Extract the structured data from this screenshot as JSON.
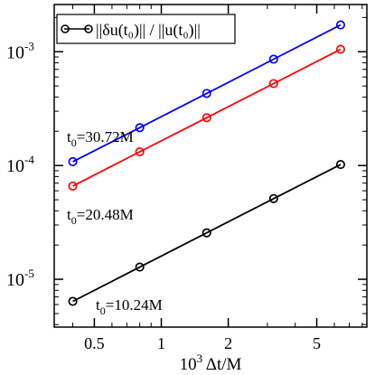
{
  "chart_data": {
    "type": "line",
    "xscale": "log",
    "yscale": "log",
    "xlim": [
      0.33,
      8.4
    ],
    "ylim": [
      3.8e-06,
      0.0026
    ],
    "xlabel": {
      "prefix": "10",
      "sup": "3",
      "rest": " Δt/M"
    },
    "xticks": [
      {
        "value": 0.5,
        "label": "0.5"
      },
      {
        "value": 1,
        "label": "1"
      },
      {
        "value": 2,
        "label": "2"
      },
      {
        "value": 5,
        "label": "5"
      }
    ],
    "yticks": [
      {
        "value": 1e-05,
        "base": "10",
        "exp": "-5"
      },
      {
        "value": 0.0001,
        "base": "10",
        "exp": "-4"
      },
      {
        "value": 0.001,
        "base": "10",
        "exp": "-3"
      }
    ],
    "legend": {
      "position": "top-left",
      "text": "||δu(t₀)|| / ||u(t₀)||"
    },
    "series": [
      {
        "color": "#0000ff",
        "label": {
          "prefix": "t",
          "sub": "0",
          "rest": "=30.72M"
        },
        "x": [
          0.4,
          0.8,
          1.6,
          3.2,
          6.4
        ],
        "y": [
          0.000108,
          0.000215,
          0.00043,
          0.00086,
          0.00172
        ]
      },
      {
        "color": "#ff0000",
        "label": {
          "prefix": "t",
          "sub": "0",
          "rest": "=20.48M"
        },
        "x": [
          0.4,
          0.8,
          1.6,
          3.2,
          6.4
        ],
        "y": [
          6.6e-05,
          0.000132,
          0.000263,
          0.000525,
          0.00105
        ]
      },
      {
        "color": "#000000",
        "label": {
          "prefix": "t",
          "sub": "0",
          "rest": "=10.24M"
        },
        "x": [
          0.4,
          0.8,
          1.6,
          3.2,
          6.4
        ],
        "y": [
          6.4e-06,
          1.28e-05,
          2.56e-05,
          5.12e-05,
          0.000102
        ]
      }
    ]
  }
}
